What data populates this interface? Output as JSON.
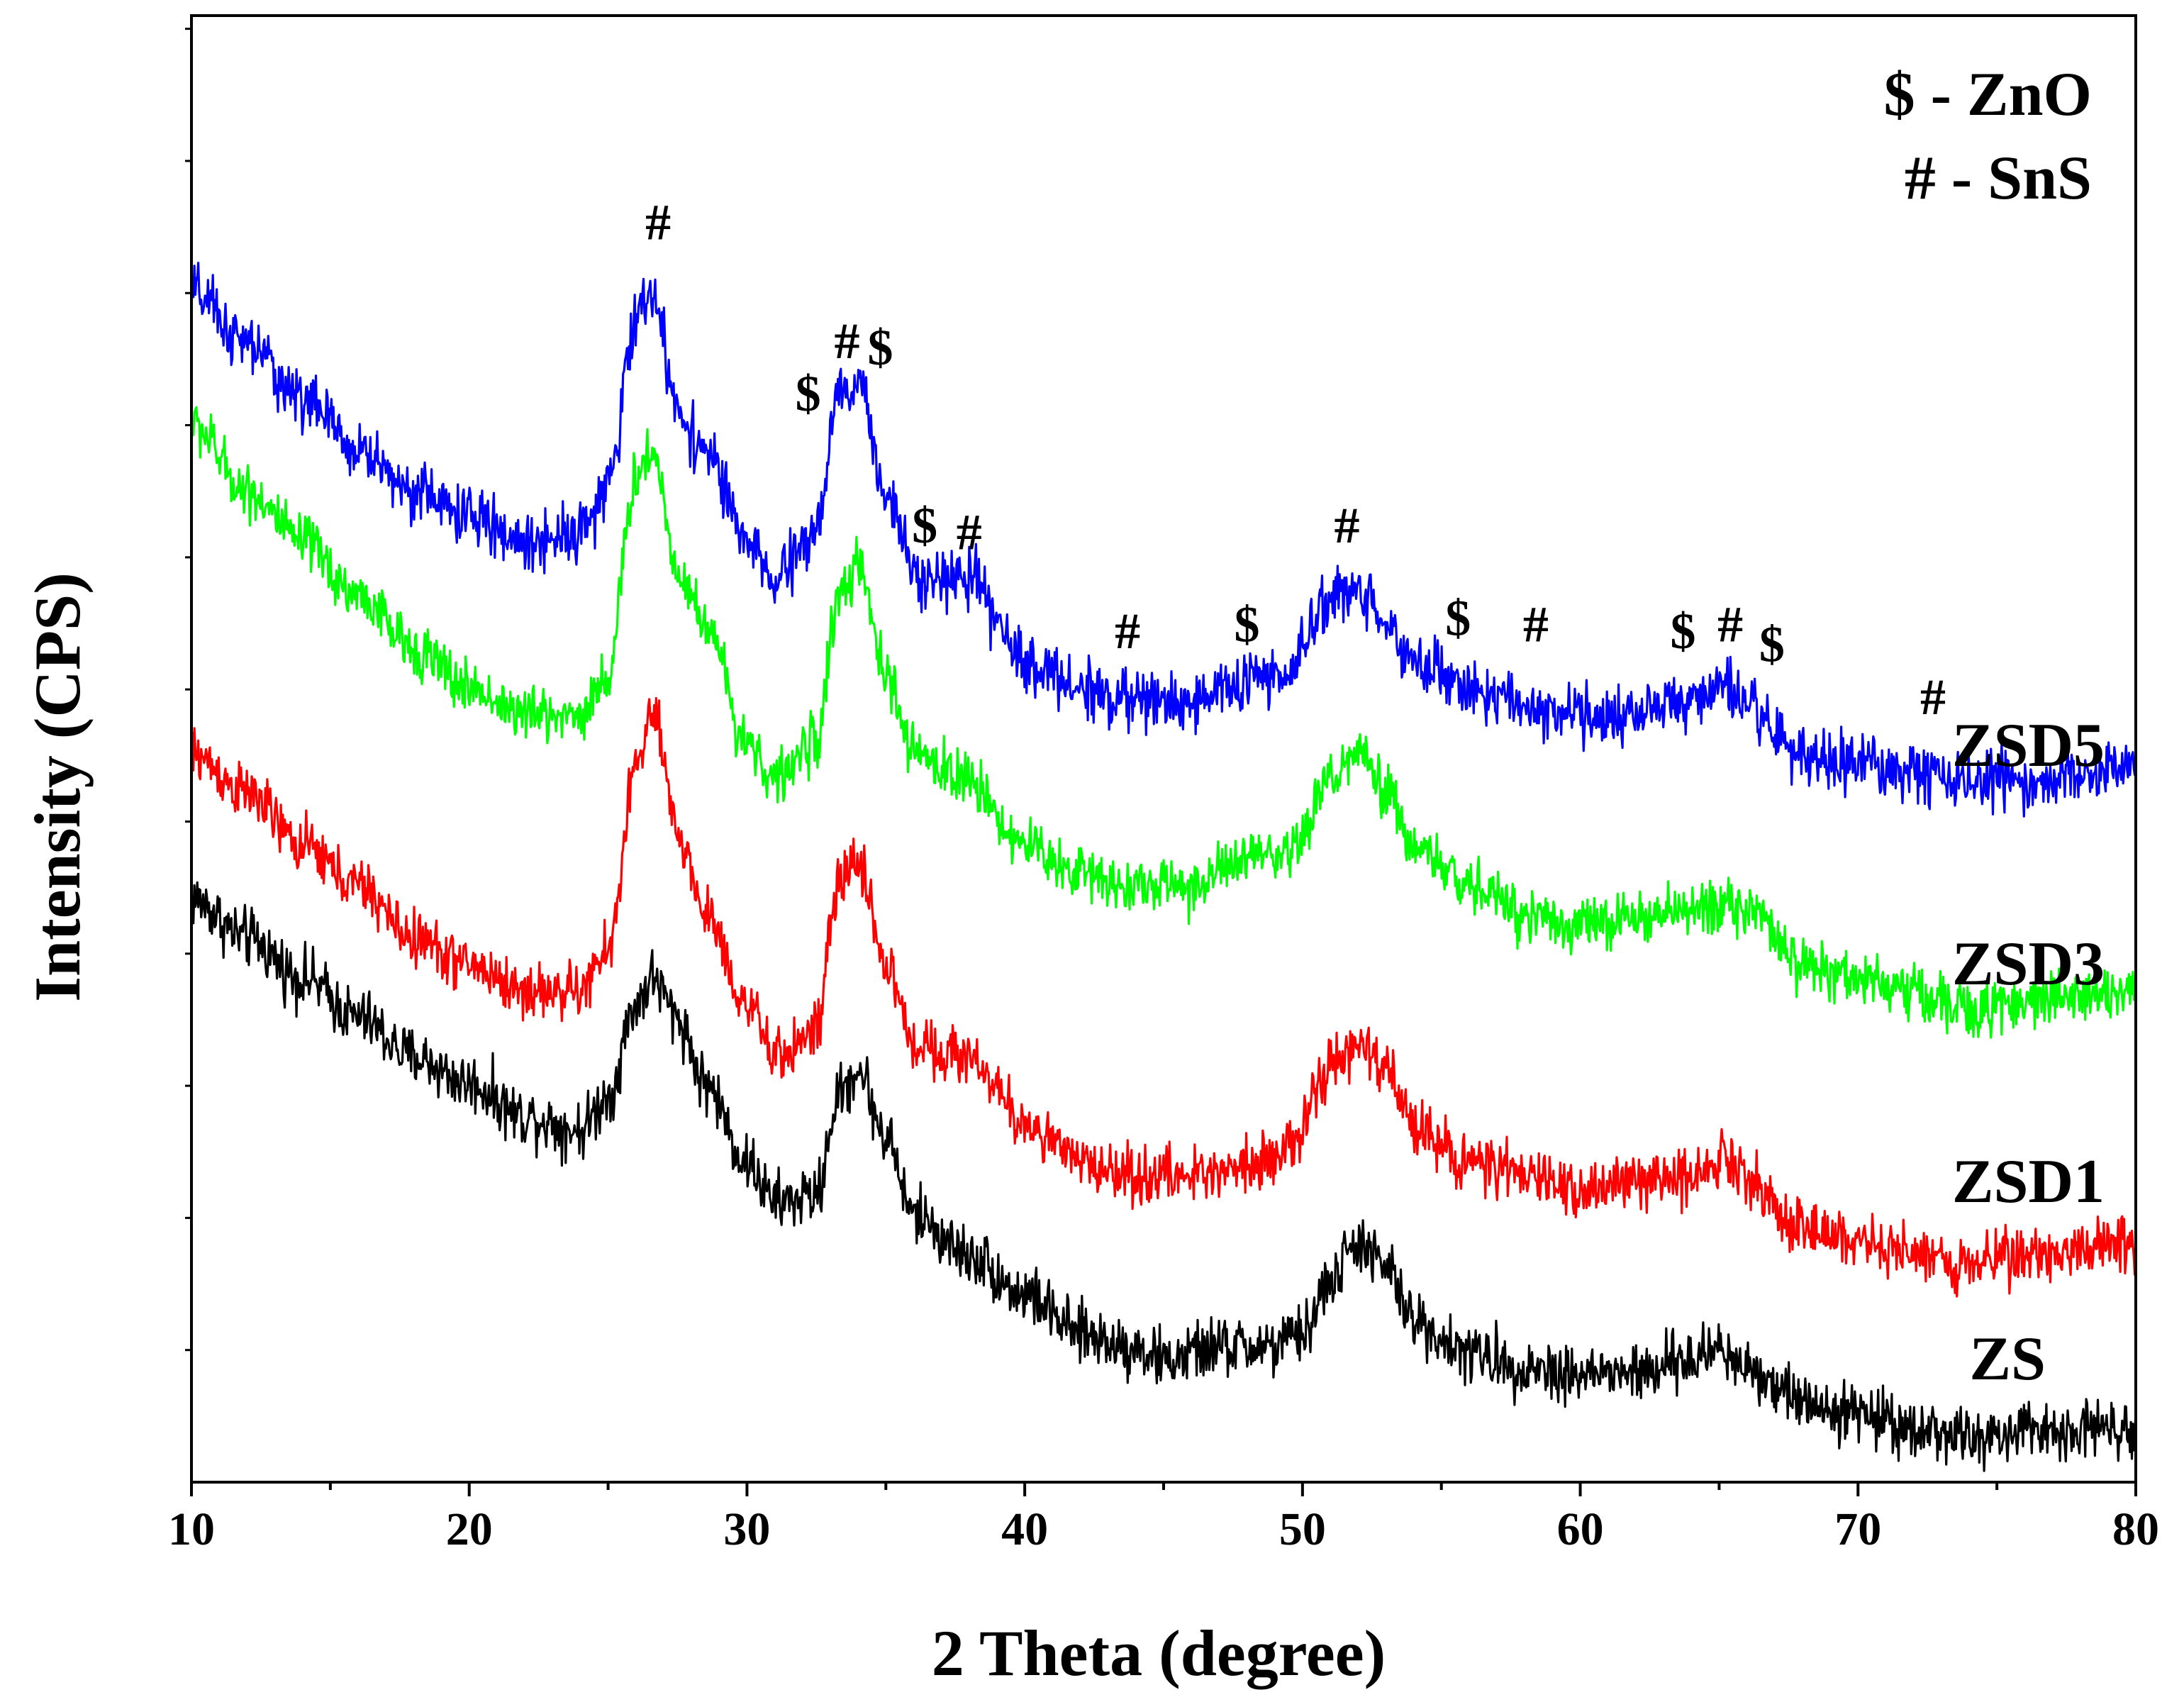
{
  "chart_data": {
    "type": "line",
    "title": "",
    "xlabel": "2 Theta (degree)",
    "ylabel": "Intensity (CPS)",
    "xlim": [
      10,
      80
    ],
    "xticks": [
      10,
      20,
      30,
      40,
      50,
      60,
      70,
      80
    ],
    "yticks_labeled": false,
    "ylim": [
      0,
      100
    ],
    "grid": false,
    "legend": {
      "placement": "top-right",
      "entries": [
        "$ - ZnO",
        "# - SnS"
      ]
    },
    "series": [
      {
        "name": "ZS",
        "color": "#000000",
        "label": "ZS",
        "points": [
          [
            10,
            41
          ],
          [
            12,
            38
          ],
          [
            14,
            35
          ],
          [
            16,
            32
          ],
          [
            18,
            29
          ],
          [
            20,
            27
          ],
          [
            22,
            24.5
          ],
          [
            24,
            23.5
          ],
          [
            25,
            26
          ],
          [
            26,
            33
          ],
          [
            26.6,
            35
          ],
          [
            27.5,
            32
          ],
          [
            28.5,
            27
          ],
          [
            30,
            21
          ],
          [
            31,
            18
          ],
          [
            32.5,
            18.5
          ],
          [
            33.3,
            26
          ],
          [
            34,
            28
          ],
          [
            35,
            23
          ],
          [
            36,
            17
          ],
          [
            38,
            14
          ],
          [
            40,
            11
          ],
          [
            42,
            8
          ],
          [
            44,
            7
          ],
          [
            45,
            6
          ],
          [
            47,
            7
          ],
          [
            49,
            7
          ],
          [
            50,
            8
          ],
          [
            51,
            12
          ],
          [
            52,
            15
          ],
          [
            53,
            13
          ],
          [
            54,
            9
          ],
          [
            56,
            6.5
          ],
          [
            58,
            5.5
          ],
          [
            60,
            5
          ],
          [
            62,
            5
          ],
          [
            64,
            6
          ],
          [
            65,
            7
          ],
          [
            66,
            5.5
          ],
          [
            68,
            3
          ],
          [
            70,
            2
          ],
          [
            72,
            1
          ],
          [
            74,
            0
          ],
          [
            76,
            0.5
          ],
          [
            78,
            1
          ],
          [
            80,
            1
          ]
        ],
        "noise": 1.4
      },
      {
        "name": "ZSD1",
        "color": "#ff0000",
        "label": "ZSD1",
        "points": [
          [
            10,
            52
          ],
          [
            12,
            49
          ],
          [
            14,
            45
          ],
          [
            16,
            42
          ],
          [
            18,
            38
          ],
          [
            20,
            36
          ],
          [
            22,
            34
          ],
          [
            24,
            34
          ],
          [
            25,
            37
          ],
          [
            26,
            51
          ],
          [
            26.6,
            55
          ],
          [
            27.5,
            46
          ],
          [
            28.5,
            40
          ],
          [
            30,
            33
          ],
          [
            31,
            29
          ],
          [
            32.5,
            31
          ],
          [
            33.3,
            42
          ],
          [
            34,
            44
          ],
          [
            35,
            36
          ],
          [
            36,
            30
          ],
          [
            38,
            29
          ],
          [
            40,
            24
          ],
          [
            42,
            21
          ],
          [
            44,
            20
          ],
          [
            46,
            20
          ],
          [
            48,
            21
          ],
          [
            49.5,
            22
          ],
          [
            51,
            28
          ],
          [
            52,
            30
          ],
          [
            53,
            28
          ],
          [
            54,
            24
          ],
          [
            56,
            21
          ],
          [
            58,
            20
          ],
          [
            60,
            19
          ],
          [
            62,
            19.5
          ],
          [
            64,
            20
          ],
          [
            65,
            21.5
          ],
          [
            66,
            20
          ],
          [
            68,
            16
          ],
          [
            70,
            15
          ],
          [
            72,
            14
          ],
          [
            74,
            13.5
          ],
          [
            76,
            14
          ],
          [
            78,
            14.5
          ],
          [
            80,
            15
          ]
        ],
        "noise": 1.3
      },
      {
        "name": "ZSD3",
        "color": "#00ff00",
        "label": "ZSD3",
        "points": [
          [
            10,
            77
          ],
          [
            12,
            72
          ],
          [
            14,
            68
          ],
          [
            16,
            64
          ],
          [
            18,
            60
          ],
          [
            20,
            57
          ],
          [
            22,
            55
          ],
          [
            24,
            55
          ],
          [
            25,
            58
          ],
          [
            26,
            73
          ],
          [
            26.6,
            75
          ],
          [
            27.5,
            66
          ],
          [
            28.5,
            62
          ],
          [
            30,
            53
          ],
          [
            31,
            50
          ],
          [
            32.5,
            53
          ],
          [
            33.3,
            64
          ],
          [
            34,
            66
          ],
          [
            35,
            58
          ],
          [
            36,
            52
          ],
          [
            38,
            50
          ],
          [
            40,
            45
          ],
          [
            42,
            43
          ],
          [
            44,
            42
          ],
          [
            46,
            42
          ],
          [
            48,
            44
          ],
          [
            49.5,
            44
          ],
          [
            51,
            50
          ],
          [
            52,
            52
          ],
          [
            53,
            49
          ],
          [
            54,
            45
          ],
          [
            56,
            42
          ],
          [
            58,
            40
          ],
          [
            60,
            39
          ],
          [
            62,
            39.5
          ],
          [
            64,
            40
          ],
          [
            65,
            41
          ],
          [
            66,
            40
          ],
          [
            68,
            36
          ],
          [
            70,
            35
          ],
          [
            72,
            34
          ],
          [
            74,
            32.5
          ],
          [
            76,
            33
          ],
          [
            78,
            34
          ],
          [
            80,
            34
          ]
        ],
        "noise": 1.3
      },
      {
        "name": "ZSD5",
        "color": "#0000ff",
        "label": "ZSD5",
        "points": [
          [
            10,
            87
          ],
          [
            12,
            83
          ],
          [
            14,
            79
          ],
          [
            16,
            75
          ],
          [
            18,
            72
          ],
          [
            20,
            70
          ],
          [
            22,
            68
          ],
          [
            24,
            69
          ],
          [
            25,
            72
          ],
          [
            26,
            85
          ],
          [
            26.6,
            87
          ],
          [
            27.5,
            78
          ],
          [
            28.5,
            75
          ],
          [
            30,
            68
          ],
          [
            31,
            65
          ],
          [
            32.5,
            69
          ],
          [
            33.3,
            79
          ],
          [
            34,
            80
          ],
          [
            35,
            72
          ],
          [
            36,
            66
          ],
          [
            38,
            65
          ],
          [
            40,
            59
          ],
          [
            42,
            57
          ],
          [
            44,
            56
          ],
          [
            46,
            56
          ],
          [
            48,
            57.5
          ],
          [
            49.5,
            58
          ],
          [
            51,
            64
          ],
          [
            52,
            64.5
          ],
          [
            53,
            62
          ],
          [
            54,
            59
          ],
          [
            56,
            57
          ],
          [
            58,
            55.5
          ],
          [
            60,
            55
          ],
          [
            62,
            55
          ],
          [
            64,
            56
          ],
          [
            65,
            57
          ],
          [
            66,
            55.5
          ],
          [
            68,
            52
          ],
          [
            70,
            51
          ],
          [
            72,
            50.5
          ],
          [
            74,
            50
          ],
          [
            76,
            50
          ],
          [
            78,
            50.5
          ],
          [
            80,
            51
          ]
        ],
        "noise": 1.4
      }
    ],
    "annotations": [
      {
        "text": "#",
        "x": 26.8,
        "y": 91
      },
      {
        "text": "$",
        "x": 32.2,
        "y": 78
      },
      {
        "text": "#",
        "x": 33.6,
        "y": 82
      },
      {
        "text": "$",
        "x": 34.8,
        "y": 81.5
      },
      {
        "text": "$",
        "x": 36.4,
        "y": 68
      },
      {
        "text": "#",
        "x": 38.0,
        "y": 67.5
      },
      {
        "text": "#",
        "x": 43.7,
        "y": 60
      },
      {
        "text": "$",
        "x": 48.0,
        "y": 60.5
      },
      {
        "text": "#",
        "x": 51.6,
        "y": 68
      },
      {
        "text": "$",
        "x": 55.6,
        "y": 61
      },
      {
        "text": "#",
        "x": 58.4,
        "y": 60.5
      },
      {
        "text": "$",
        "x": 63.7,
        "y": 60
      },
      {
        "text": "#",
        "x": 65.4,
        "y": 60.5
      },
      {
        "text": "$",
        "x": 66.9,
        "y": 59
      },
      {
        "text": "#",
        "x": 72.7,
        "y": 55
      }
    ]
  }
}
